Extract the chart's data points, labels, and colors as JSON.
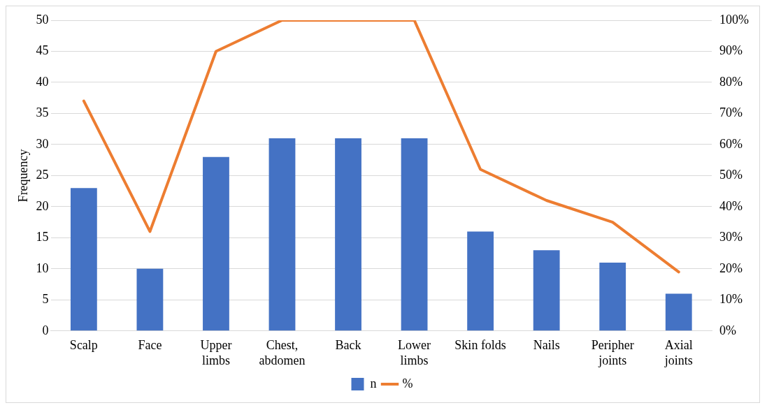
{
  "chart_data": {
    "type": "bar",
    "ylabel": "Frequency",
    "categories": [
      "Scalp",
      "Face",
      "Upper limbs",
      "Chest, abdomen",
      "Back",
      "Lower limbs",
      "Skin folds",
      "Nails",
      "Peripher joints",
      "Axial joints"
    ],
    "series": [
      {
        "name": "n",
        "color": "#4472c4",
        "values": [
          23,
          10,
          28,
          31,
          31,
          31,
          16,
          13,
          11,
          6
        ]
      },
      {
        "name": "%",
        "type": "line",
        "axis": "y2",
        "color": "#ed7d31",
        "values": [
          74,
          32,
          90,
          100,
          100,
          100,
          52,
          42,
          35,
          19
        ]
      }
    ],
    "ylim": [
      0,
      50
    ],
    "yticks": [
      0,
      5,
      10,
      15,
      20,
      25,
      30,
      35,
      40,
      45,
      50
    ],
    "y2lim": [
      0,
      100
    ],
    "y2ticks": [
      {
        "value": 0,
        "label": "0%"
      },
      {
        "value": 10,
        "label": "10%"
      },
      {
        "value": 20,
        "label": "20%"
      },
      {
        "value": 30,
        "label": "30%"
      },
      {
        "value": 40,
        "label": "40%"
      },
      {
        "value": 50,
        "label": "50%"
      },
      {
        "value": 60,
        "label": "60%"
      },
      {
        "value": 70,
        "label": "70%"
      },
      {
        "value": 80,
        "label": "80%"
      },
      {
        "value": 90,
        "label": "90%"
      },
      {
        "value": 100,
        "label": "100%"
      }
    ],
    "grid": "y",
    "legend": "bottom",
    "marker": "none",
    "line_style": "solid"
  }
}
